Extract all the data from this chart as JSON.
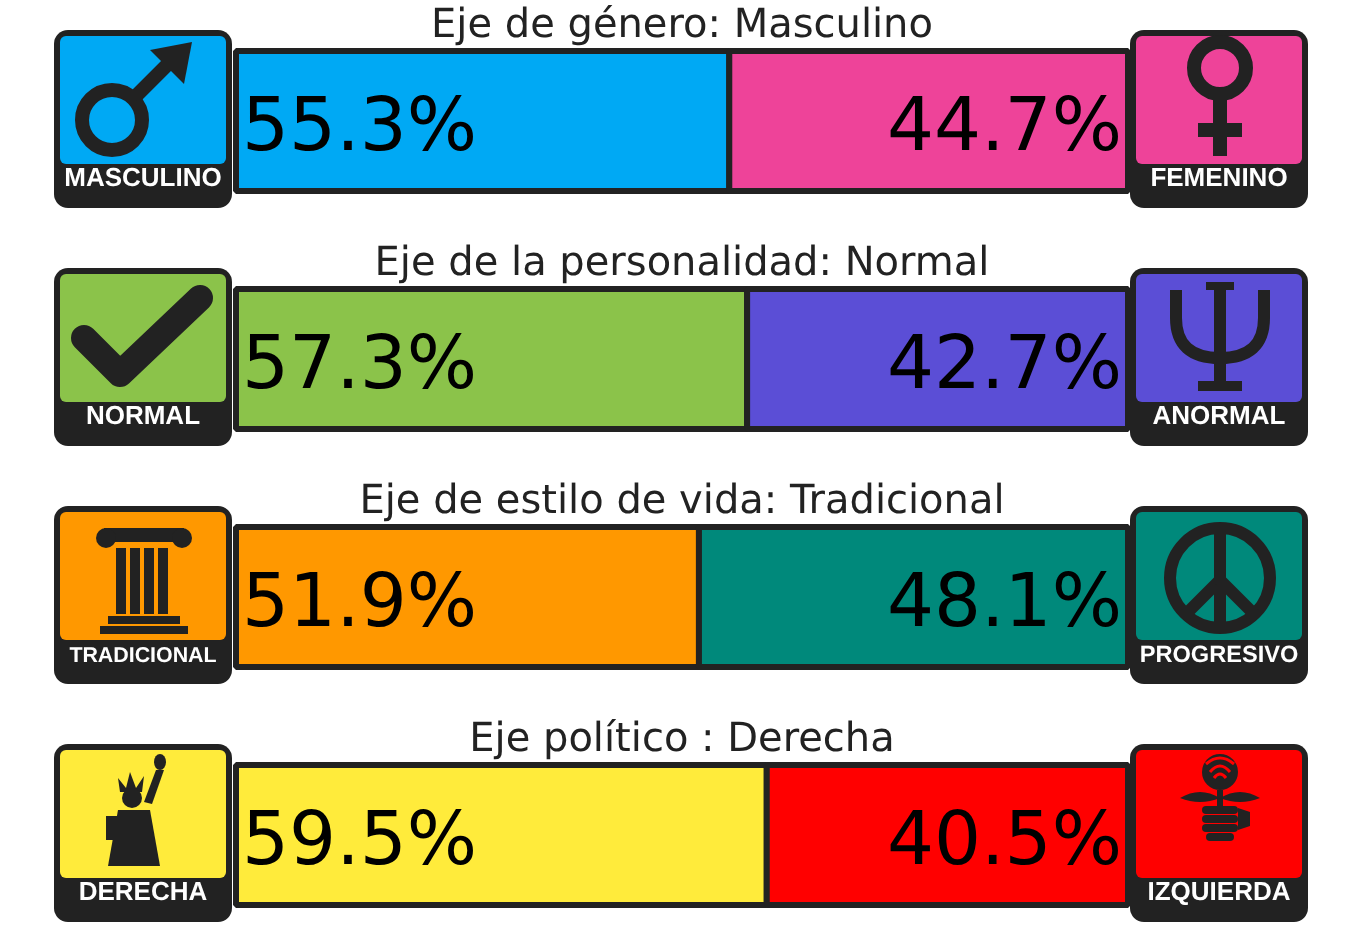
{
  "chart_data": [
    {
      "type": "bar",
      "title": "Eje de género: Masculino",
      "orientation": "horizontal",
      "stacked": true,
      "categories": [
        null
      ],
      "xlim": [
        0,
        100
      ],
      "tick_labels": false,
      "legend": "center",
      "series": [
        {
          "name": "MASCULINO",
          "color": "#00a9f4",
          "values": [
            55.3
          ],
          "value_labels": [
            "55.3%"
          ]
        },
        {
          "name": "FEMENINO",
          "color": "#ee4399",
          "values": [
            44.7
          ],
          "value_labels": [
            "44.7%"
          ]
        }
      ]
    },
    {
      "type": "bar",
      "title": "Eje de la personalidad: Normal",
      "orientation": "horizontal",
      "stacked": true,
      "categories": [
        null
      ],
      "xlim": [
        0,
        100
      ],
      "tick_labels": false,
      "legend": "center",
      "series": [
        {
          "name": "NORMAL",
          "color": "#8bc34a",
          "values": [
            57.3
          ],
          "value_labels": [
            "57.3%"
          ]
        },
        {
          "name": "ANORMAL",
          "color": "#5b4ed6",
          "values": [
            42.7
          ],
          "value_labels": [
            "42.7%"
          ]
        }
      ]
    },
    {
      "type": "bar",
      "title": "Eje de estilo de vida: Tradicional",
      "orientation": "horizontal",
      "stacked": true,
      "categories": [
        null
      ],
      "xlim": [
        0,
        100
      ],
      "tick_labels": false,
      "legend": "center",
      "series": [
        {
          "name": "TRADICIONAL",
          "color": "#ff9800",
          "values": [
            51.9
          ],
          "value_labels": [
            "51.9%"
          ]
        },
        {
          "name": "PROGRESIVO",
          "color": "#00897b",
          "values": [
            48.1
          ],
          "value_labels": [
            "48.1%"
          ]
        }
      ]
    },
    {
      "type": "bar",
      "title": "Eje político : Derecha",
      "orientation": "horizontal",
      "stacked": true,
      "categories": [
        null
      ],
      "xlim": [
        0,
        100
      ],
      "tick_labels": false,
      "legend": "center",
      "series": [
        {
          "name": "DERECHA",
          "color": "#ffeb3b",
          "values": [
            59.5
          ],
          "value_labels": [
            "59.5%"
          ]
        },
        {
          "name": "IZQUIERDA",
          "color": "#ff0000",
          "values": [
            40.5
          ],
          "value_labels": [
            "40.5%"
          ]
        }
      ]
    }
  ]
}
